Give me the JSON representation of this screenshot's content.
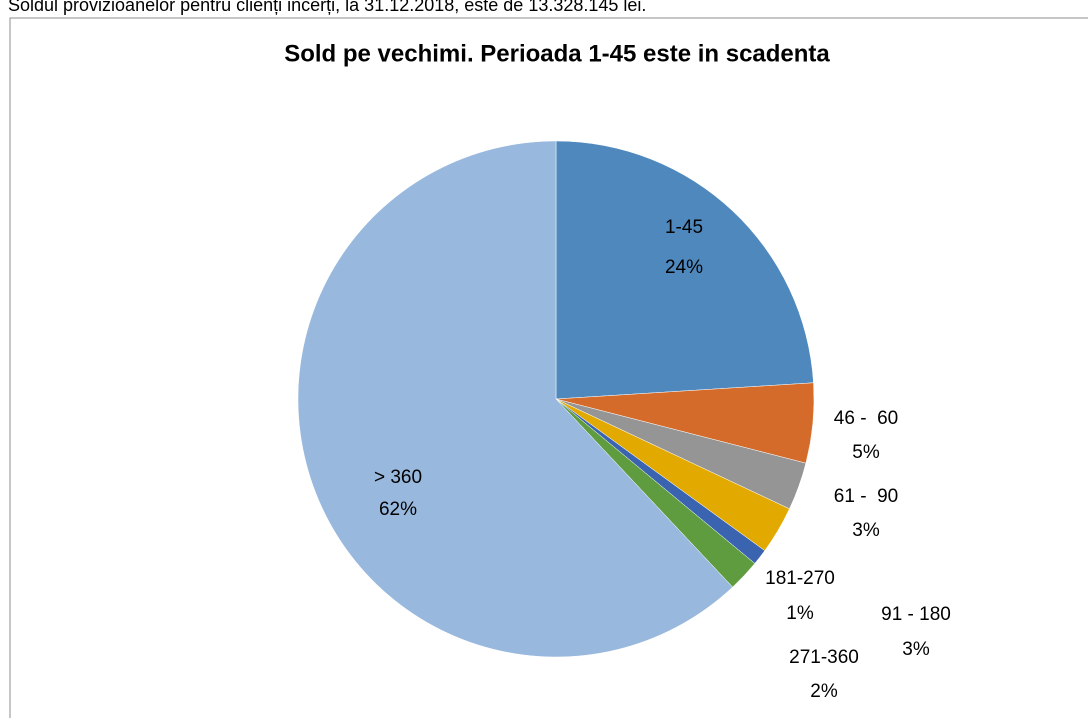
{
  "caption": "Soldul provizioanelor pentru clienți incerți, la 31.12.2018, este de 13.328.145 lei.",
  "chart_data": {
    "type": "pie",
    "title": "Sold pe vechimi. Perioada 1-45 este in scadenta",
    "categories": [
      "1-45",
      "46 -  60",
      "61 -  90",
      "91 - 180",
      "181-270",
      "271-360",
      "> 360"
    ],
    "values": [
      24,
      5,
      3,
      3,
      1,
      2,
      62
    ],
    "value_labels": [
      "24%",
      "5%",
      "3%",
      "3%",
      "1%",
      "2%",
      "62%"
    ],
    "colors": [
      "#4f88bd",
      "#d46b2a",
      "#959595",
      "#e2aa00",
      "#3a63b0",
      "#5f9b3f",
      "#98b8de"
    ]
  }
}
